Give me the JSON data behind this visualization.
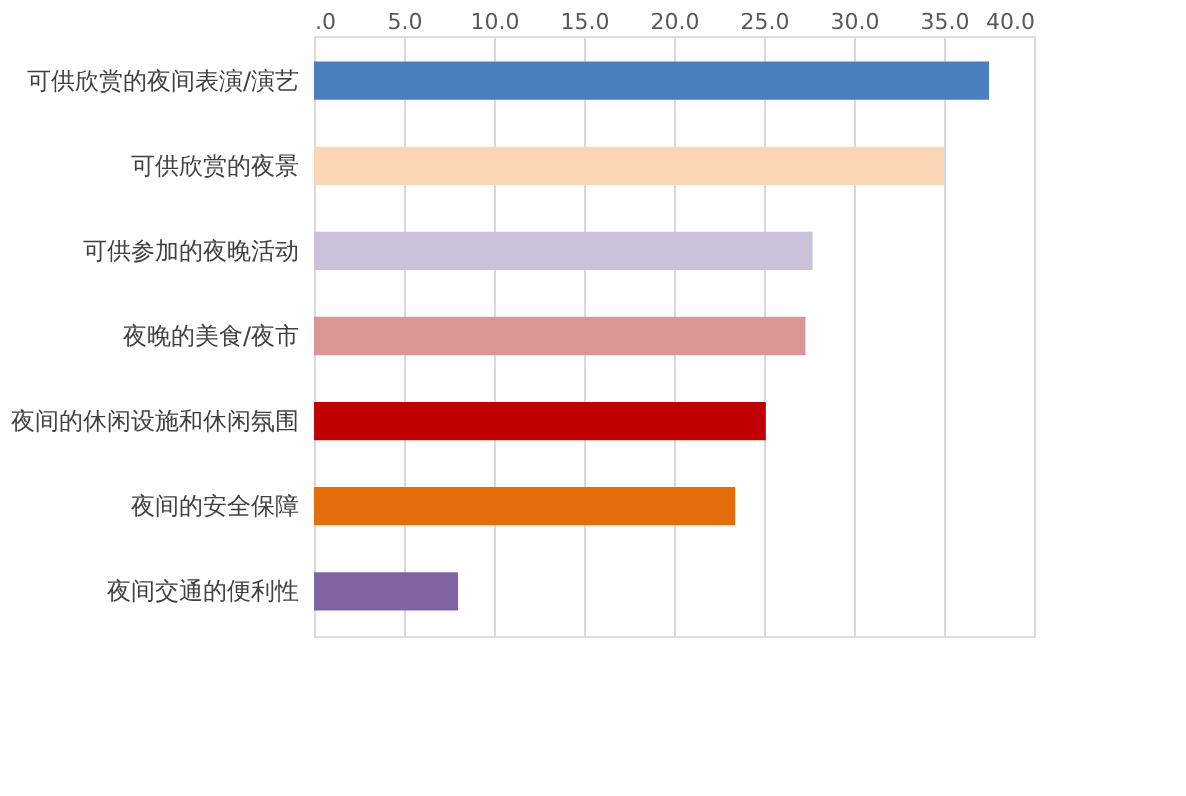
{
  "chart_data": {
    "type": "bar",
    "orientation": "horizontal",
    "categories": [
      "可供欣赏的夜间表演/演艺",
      "可供欣赏的夜景",
      "可供参加的夜晚活动",
      "夜晚的美食/夜市",
      "夜间的休闲设施和休闲氛围",
      "夜间的安全保障",
      "夜间交通的便利性"
    ],
    "values": [
      37.5,
      35.0,
      27.7,
      27.3,
      25.1,
      23.4,
      8.0
    ],
    "colors": [
      "#4a7ebf",
      "#fcd5b5",
      "#ccc1da",
      "#d99694",
      "#c00000",
      "#e46c0a",
      "#8064a2"
    ],
    "xlim": [
      0,
      40
    ],
    "xticks": [
      {
        "value": 0,
        "label": ".0"
      },
      {
        "value": 5,
        "label": "5.0"
      },
      {
        "value": 10,
        "label": "10.0"
      },
      {
        "value": 15,
        "label": "15.0"
      },
      {
        "value": 20,
        "label": "20.0"
      },
      {
        "value": 25,
        "label": "25.0"
      },
      {
        "value": 30,
        "label": "30.0"
      },
      {
        "value": 35,
        "label": "35.0"
      },
      {
        "value": 40,
        "label": "40.0"
      }
    ],
    "grid": "x"
  }
}
